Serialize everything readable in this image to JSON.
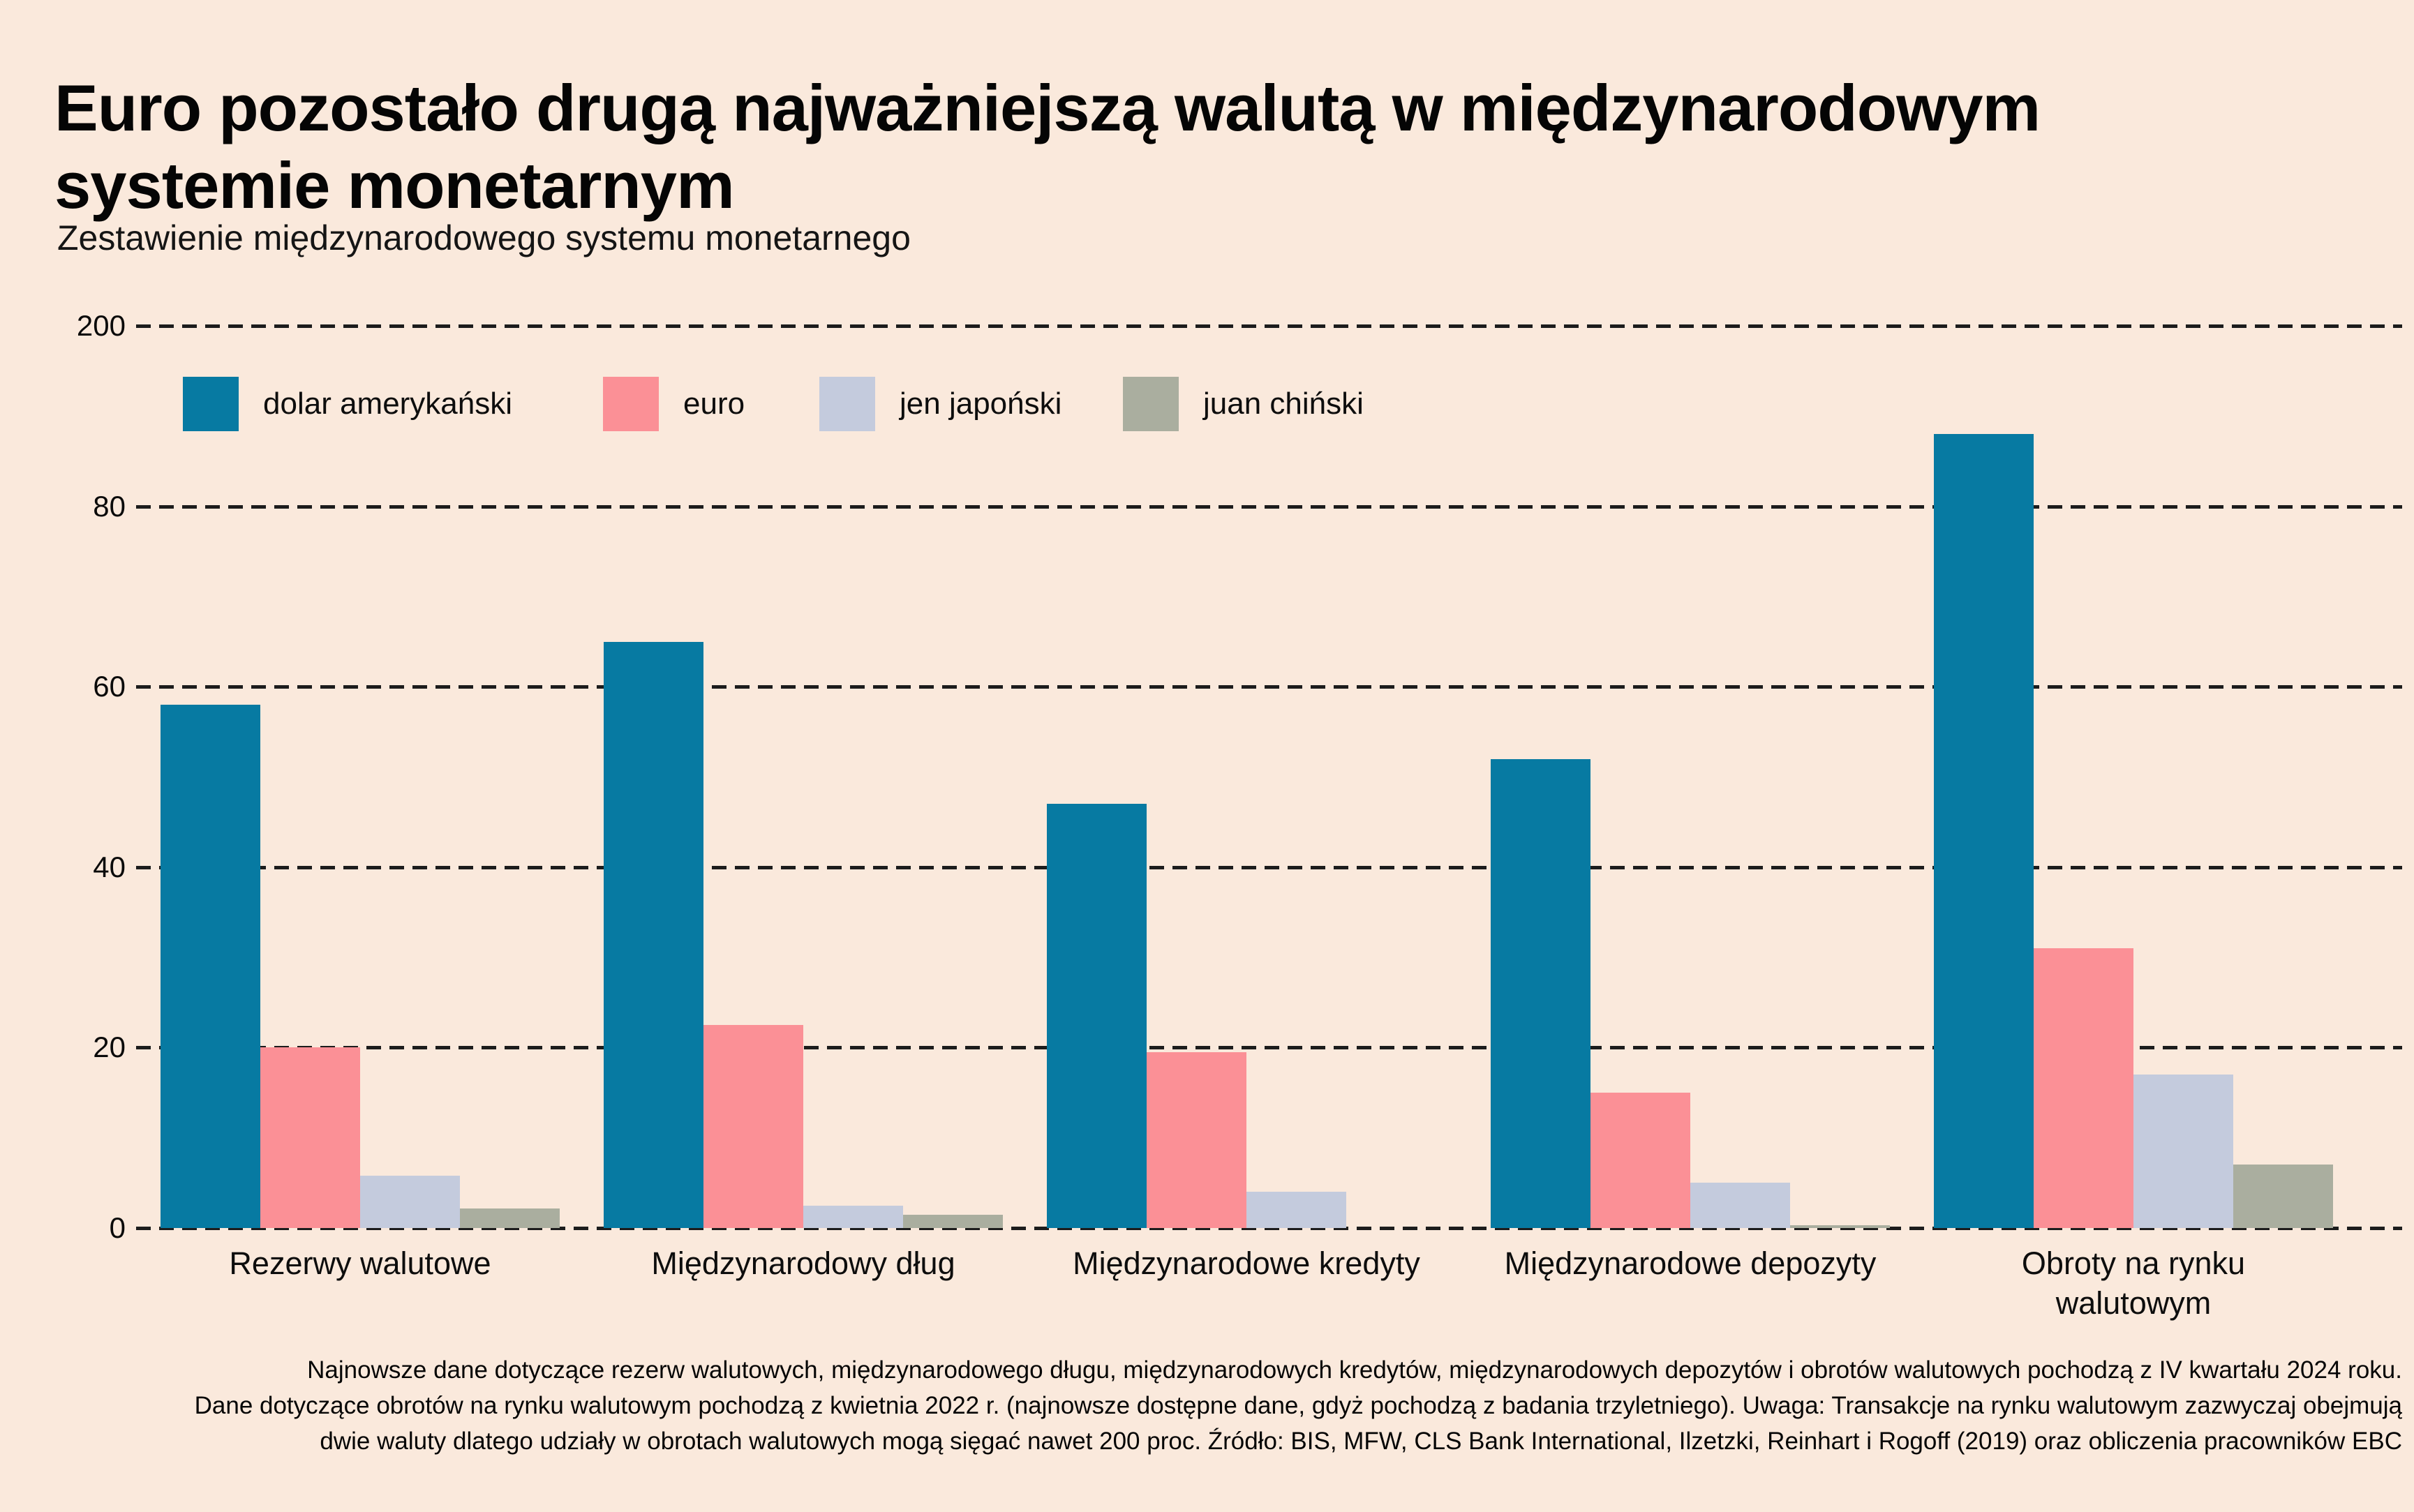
{
  "title": {
    "line1": "Euro pozostało drugą najważniejszą walutą w międzynarodowym",
    "line2": "systemie monetarnym"
  },
  "subtitle": "Zestawienie międzynarodowego systemu monetarnego",
  "legend": [
    {
      "label": "dolar amerykański",
      "color": "#077aa2"
    },
    {
      "label": "euro",
      "color": "#fb9096"
    },
    {
      "label": "jen japoński",
      "color": "#c4cbdd"
    },
    {
      "label": "juan chiński",
      "color": "#aaae9f"
    }
  ],
  "y_axis": {
    "ticks": [
      "200",
      "80",
      "60",
      "40",
      "20",
      "0"
    ]
  },
  "chart_data": {
    "type": "bar",
    "categories": [
      "Rezerwy walutowe",
      "Międzynarodowy dług",
      "Międzynarodowe kredyty",
      "Międzynarodowe depozyty",
      "Obroty na rynku walutowym"
    ],
    "series": [
      {
        "name": "dolar amerykański",
        "color": "#077aa2",
        "values": [
          58,
          65,
          47,
          52,
          88
        ]
      },
      {
        "name": "euro",
        "color": "#fb9096",
        "values": [
          20,
          22.5,
          19.5,
          15,
          31
        ]
      },
      {
        "name": "jen japoński",
        "color": "#c4cbdd",
        "values": [
          5.8,
          2.5,
          4,
          5,
          17
        ]
      },
      {
        "name": "juan chiński",
        "color": "#aaae9f",
        "values": [
          2.2,
          1.5,
          0,
          0.3,
          7
        ]
      }
    ],
    "unit": "proc.",
    "gridline_values": [
      0,
      20,
      40,
      60,
      80,
      200
    ],
    "axis_note": "oś łamana: odcinek 0–80 liniowy, najwyższa linia siatki 200",
    "grid": "dashed-horizontal",
    "legend_position": "top"
  },
  "footnote_lines": [
    "Najnowsze dane dotyczące rezerw walutowych, międzynarodowego długu, międzynarodowych kredytów, międzynarodowych depozytów i obrotów walutowych pochodzą z IV kwartału 2024 roku.",
    "Dane dotyczące obrotów na rynku walutowym pochodzą z kwietnia 2022 r. (najnowsze dostępne dane, gdyż pochodzą z badania trzyletniego). Uwaga: Transakcje na rynku walutowym zazwyczaj obejmują",
    "dwie waluty dlatego udziały w obrotach walutowych mogą sięgać nawet 200 proc. Źródło: BIS, MFW, CLS Bank International, Ilzetzki, Reinhart i Rogoff (2019) oraz obliczenia pracowników EBC"
  ],
  "colors": {
    "background": "#fae9dc",
    "gridline": "#1c1c1c",
    "text": "#0a0a0a"
  }
}
